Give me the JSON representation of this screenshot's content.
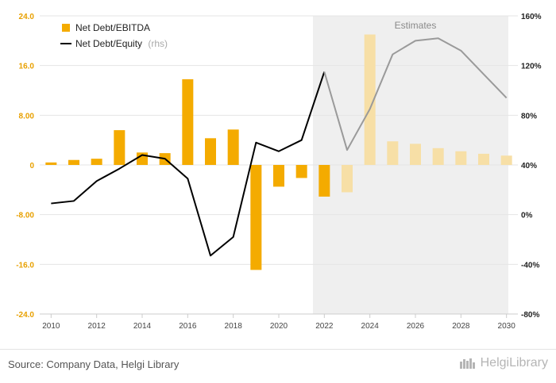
{
  "chart_data": {
    "type": "bar+line",
    "x": [
      2010,
      2011,
      2012,
      2013,
      2014,
      2015,
      2016,
      2017,
      2018,
      2019,
      2020,
      2021,
      2022,
      2023,
      2024,
      2025,
      2026,
      2027,
      2028,
      2029,
      2030
    ],
    "x_tick_labels": [
      "2010",
      "2012",
      "2014",
      "2016",
      "2018",
      "2020",
      "2022",
      "2024",
      "2026",
      "2028",
      "2030"
    ],
    "estimates_from": 2023,
    "estimates_label": "Estimates",
    "left_axis": {
      "ylim": [
        -24,
        24
      ],
      "ticks": [
        "-24.0",
        "-16.0",
        "-8.00",
        "0",
        "8.00",
        "16.0",
        "24.0"
      ]
    },
    "right_axis": {
      "ylim": [
        -80,
        160
      ],
      "ticks": [
        "-80%",
        "-40%",
        "0%",
        "40%",
        "80%",
        "120%",
        "160%"
      ]
    },
    "series": [
      {
        "name": "Net Debt/EBITDA",
        "kind": "bar",
        "axis": "left",
        "values": [
          0.4,
          0.8,
          1.0,
          5.6,
          2.0,
          1.9,
          13.8,
          4.3,
          5.7,
          -16.9,
          -3.5,
          -2.1,
          -5.1,
          -4.4,
          21.0,
          3.8,
          3.4,
          2.7,
          2.2,
          1.8,
          1.5
        ]
      },
      {
        "name": "Net Debt/Equity",
        "legend_suffix": "(rhs)",
        "kind": "line",
        "axis": "right",
        "values": [
          9,
          11,
          27,
          37,
          48,
          45,
          29,
          -33,
          -18,
          58,
          51,
          60,
          115,
          52,
          85,
          129,
          140,
          142,
          132,
          113,
          94
        ]
      }
    ],
    "colors": {
      "bar_actual": "#f4ab00",
      "bar_estimate": "#f7dfa6",
      "line_actual": "#000000",
      "line_estimate": "#9a9a9a",
      "estimate_bg": "#efefef",
      "left_tick": "#e8a000",
      "right_tick": "#222222"
    },
    "grid": true,
    "legend_position": "top-left"
  },
  "footer": {
    "source": "Source: Company Data, Helgi Library",
    "brand": "HelgiLibrary"
  }
}
